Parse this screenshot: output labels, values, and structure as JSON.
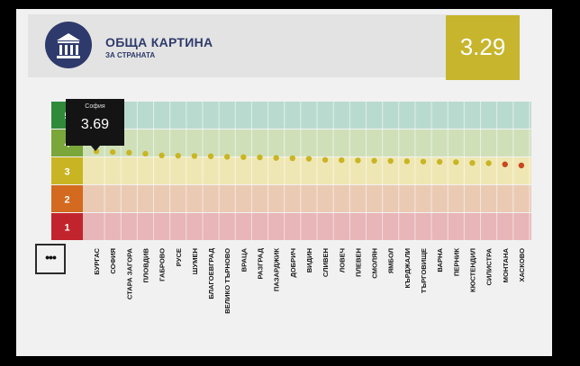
{
  "header": {
    "title": "ОБЩА КАРТИНА",
    "subtitle": "ЗА СТРАНАТА",
    "icon": "institution-icon",
    "score": "3.29"
  },
  "more_button": {
    "label": "•••",
    "icon": "more-dots-icon"
  },
  "tooltip": {
    "label": "София",
    "value": "3.69"
  },
  "colors": {
    "band_5": "#b9dbcf",
    "band_4": "#cfe0b9",
    "band_3": "#efe7b3",
    "band_2": "#ebcab4",
    "band_1": "#e8b5b8",
    "grade_5": "#2f8a3a",
    "grade_4": "#7aa63a",
    "grade_3": "#c9b524",
    "grade_2": "#d36a1f",
    "grade_1": "#c2242d",
    "accent": "#c7b52d"
  },
  "chart_data": {
    "type": "scatter",
    "title": "",
    "xlabel": "",
    "ylabel": "",
    "grades": [
      "5",
      "4",
      "3",
      "2",
      "1"
    ],
    "ylim": [
      0.5,
      5.5
    ],
    "grid": true,
    "categories": [
      "БУРГАС",
      "СОФИЯ",
      "СТАРА ЗАГОРА",
      "ПЛОВДИВ",
      "ГАБРОВО",
      "РУСЕ",
      "ШУМЕН",
      "БЛАГОЕВГРАД",
      "ВЕЛИКО ТЪРНОВО",
      "ВРАЦА",
      "РАЗГРАД",
      "ПАЗАРДЖИК",
      "ДОБРИЧ",
      "ВИДИН",
      "СЛИВЕН",
      "ЛОВЕЧ",
      "ПЛЕВЕН",
      "СМОЛЯН",
      "ЯМБОЛ",
      "КЪРДЖАЛИ",
      "ТЪРГОВИЩЕ",
      "ВАРНА",
      "ПЕРНИК",
      "КЮСТЕНДИЛ",
      "СИЛИСТРА",
      "МОНТАНА",
      "ХАСКОВО"
    ],
    "values": [
      3.72,
      3.69,
      3.67,
      3.63,
      3.57,
      3.56,
      3.55,
      3.54,
      3.52,
      3.51,
      3.5,
      3.48,
      3.47,
      3.45,
      3.41,
      3.4,
      3.39,
      3.38,
      3.37,
      3.36,
      3.35,
      3.34,
      3.33,
      3.3,
      3.29,
      3.25,
      3.21
    ],
    "point_colors": [
      "#c9b524",
      "#c9b524",
      "#c9b524",
      "#c9b524",
      "#c9b524",
      "#c9b524",
      "#c9b524",
      "#c9b524",
      "#c9b524",
      "#c9b524",
      "#c9b524",
      "#c9b524",
      "#c9b524",
      "#c9b524",
      "#c9b524",
      "#c9b524",
      "#c9b524",
      "#c9b524",
      "#c9b524",
      "#c9b524",
      "#c9b524",
      "#c9b524",
      "#c9b524",
      "#c9b524",
      "#c9b524",
      "#c9461f",
      "#c9461f"
    ]
  }
}
